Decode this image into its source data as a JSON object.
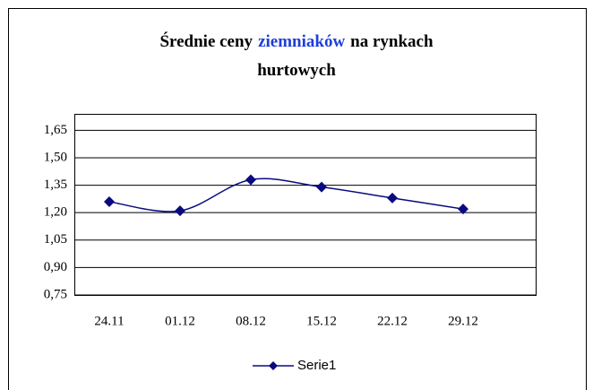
{
  "chart_data": {
    "type": "line",
    "title_lines": [
      [
        "Średnie ceny",
        "ziemniaków",
        "na rynkach"
      ],
      [
        "hurtowych"
      ]
    ],
    "title_colors": [
      [
        "#000000",
        "#1f3fd6",
        "#000000"
      ],
      [
        "#000000"
      ]
    ],
    "categories": [
      "24.11",
      "01.12",
      "08.12",
      "15.12",
      "22.12",
      "29.12"
    ],
    "series": [
      {
        "name": "Serie1",
        "color": "#0a0a80",
        "values": [
          1.26,
          1.21,
          1.38,
          1.34,
          1.28,
          1.22
        ]
      }
    ],
    "ylim": [
      0.75,
      1.74
    ],
    "yticks": [
      {
        "value": 0.75,
        "label": "0,75"
      },
      {
        "value": 0.9,
        "label": "0,90"
      },
      {
        "value": 1.05,
        "label": "1,05"
      },
      {
        "value": 1.2,
        "label": "1,20"
      },
      {
        "value": 1.35,
        "label": "1,35"
      },
      {
        "value": 1.5,
        "label": "1,50"
      },
      {
        "value": 1.65,
        "label": "1,65"
      }
    ],
    "grid": true,
    "legend": "bottom"
  }
}
